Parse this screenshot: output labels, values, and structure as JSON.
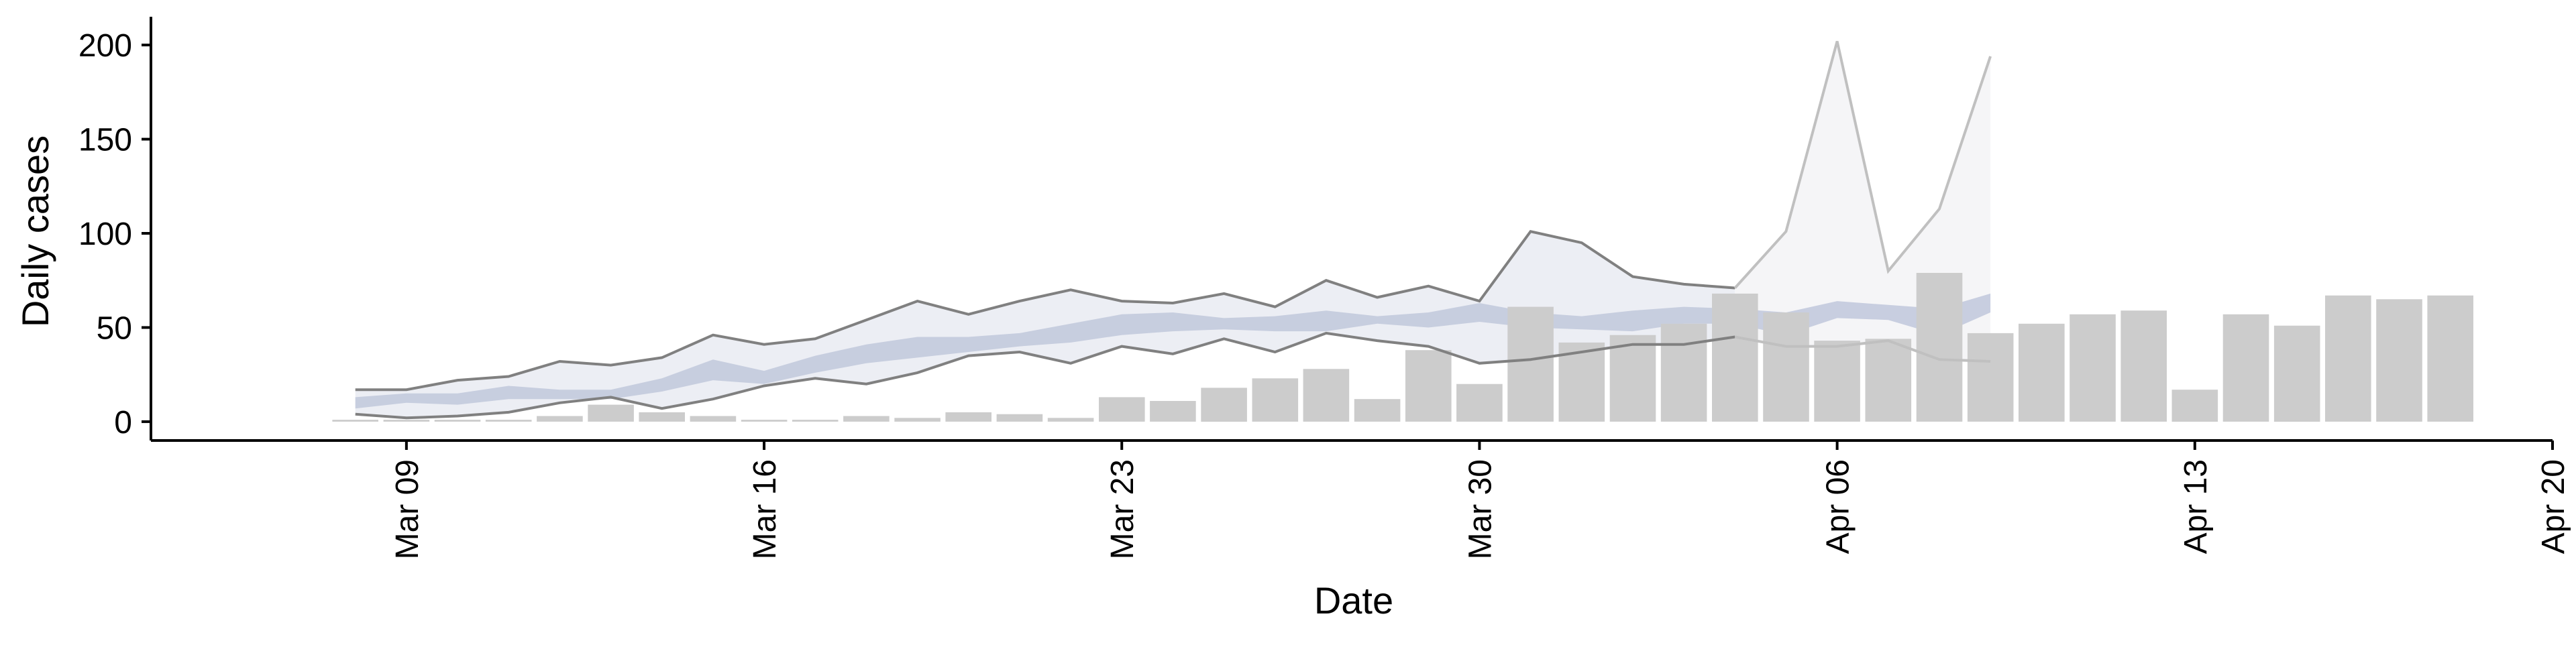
{
  "chart_data": {
    "type": "bar",
    "xlabel": "Date",
    "ylabel": "Daily cases",
    "ylim": [
      -10,
      215
    ],
    "xlim": [
      "2020-03-04",
      "2020-04-20"
    ],
    "yticks": [
      0,
      50,
      100,
      150,
      200
    ],
    "xticks": [
      {
        "date": "2020-03-09",
        "label": "Mar 09"
      },
      {
        "date": "2020-03-16",
        "label": "Mar 16"
      },
      {
        "date": "2020-03-23",
        "label": "Mar 23"
      },
      {
        "date": "2020-03-30",
        "label": "Mar 30"
      },
      {
        "date": "2020-04-06",
        "label": "Apr 06"
      },
      {
        "date": "2020-04-13",
        "label": "Apr 13"
      },
      {
        "date": "2020-04-20",
        "label": "Apr 20"
      }
    ],
    "grid": false,
    "legend": "none",
    "colors": {
      "bars": "#cccccc",
      "estimate_band": "#c3cadd",
      "interval_fill": "#eceef4",
      "interval_fill_right_censored": "#f5f5f7",
      "interval_line": "#808080",
      "interval_line_right_censored": "#c0c0c0"
    },
    "bars": {
      "start_date": "2020-03-08",
      "values": [
        1,
        1,
        1,
        1,
        3,
        9,
        5,
        3,
        1,
        1,
        3,
        2,
        5,
        4,
        2,
        13,
        11,
        18,
        23,
        28,
        12,
        38,
        20,
        61,
        42,
        46,
        52,
        68,
        58,
        43,
        44,
        79,
        47,
        52,
        57,
        59,
        17,
        57,
        51,
        67,
        65,
        67
      ]
    },
    "estimates": {
      "start_date": "2020-03-08",
      "lower": [
        4,
        2,
        3,
        5,
        10,
        13,
        7,
        12,
        19,
        23,
        20,
        26,
        35,
        37,
        31,
        40,
        36,
        44,
        37,
        47,
        43,
        40,
        31,
        33,
        37,
        41,
        41,
        45,
        40,
        40,
        43,
        33,
        32
      ],
      "upper": [
        17,
        17,
        22,
        24,
        32,
        30,
        34,
        46,
        41,
        44,
        54,
        64,
        57,
        64,
        70,
        64,
        63,
        68,
        61,
        75,
        66,
        72,
        64,
        101,
        95,
        77,
        73,
        71,
        101,
        202,
        80,
        113,
        194
      ],
      "median_low": [
        7,
        10,
        9,
        12,
        12,
        12,
        16,
        22,
        20,
        26,
        31,
        34,
        37,
        40,
        42,
        46,
        48,
        49,
        48,
        48,
        52,
        50,
        53,
        50,
        49,
        48,
        52,
        52,
        46,
        55,
        54,
        46,
        58
      ],
      "median_high": [
        13,
        15,
        15,
        19,
        17,
        17,
        23,
        33,
        27,
        35,
        41,
        45,
        45,
        47,
        52,
        57,
        58,
        55,
        56,
        59,
        56,
        58,
        63,
        58,
        56,
        59,
        61,
        60,
        58,
        64,
        62,
        60,
        68
      ],
      "right_censored_from": "2020-04-04"
    }
  }
}
